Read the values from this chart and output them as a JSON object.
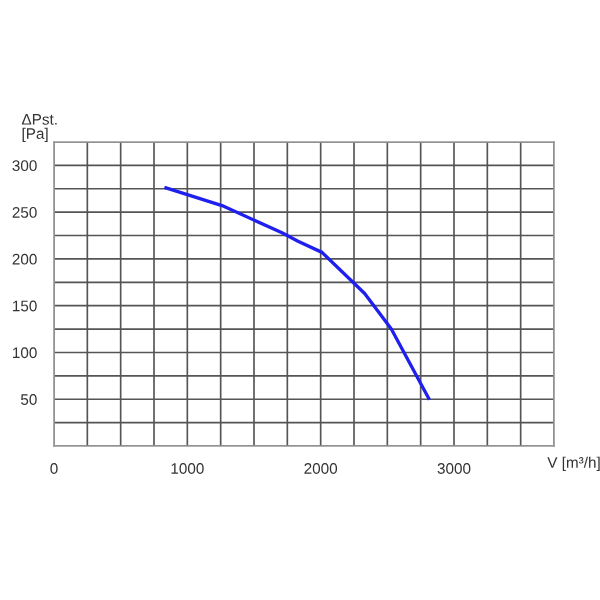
{
  "chart_data": {
    "type": "line",
    "ylabel": "ΔPst.\n[Pa]",
    "xlabel": "V [m³/h]",
    "series": [
      {
        "color": "#2020ee",
        "x": [
          840,
          1260,
          1710,
          1830,
          2010,
          2330,
          2530,
          2810
        ],
        "values": [
          276,
          257,
          228,
          219,
          207,
          163,
          125,
          51
        ]
      }
    ],
    "xlim": [
      0,
      3750
    ],
    "ylim": [
      0,
      325
    ],
    "xticks": [
      0,
      {
        "value": 250,
        "label": null
      },
      {
        "value": 500,
        "label": null
      },
      {
        "value": 750,
        "label": null
      },
      1000,
      {
        "value": 1250,
        "label": null
      },
      {
        "value": 1500,
        "label": null
      },
      {
        "value": 1750,
        "label": null
      },
      2000,
      {
        "value": 2250,
        "label": null
      },
      {
        "value": 2500,
        "label": null
      },
      {
        "value": 2750,
        "label": null
      },
      3000,
      {
        "value": 3250,
        "label": null
      },
      {
        "value": 3500,
        "label": null
      },
      {
        "value": 3750,
        "label": null
      }
    ],
    "yticks": [
      {
        "value": 0,
        "label": null
      },
      {
        "value": 25,
        "label": null
      },
      50,
      {
        "value": 75,
        "label": null
      },
      100,
      {
        "value": 125,
        "label": null
      },
      150,
      {
        "value": 175,
        "label": null
      },
      200,
      {
        "value": 225,
        "label": null
      },
      250,
      {
        "value": 275,
        "label": null
      },
      300,
      {
        "value": 325,
        "label": null
      }
    ],
    "grid": true,
    "marker": "none",
    "line_style": "solid"
  }
}
